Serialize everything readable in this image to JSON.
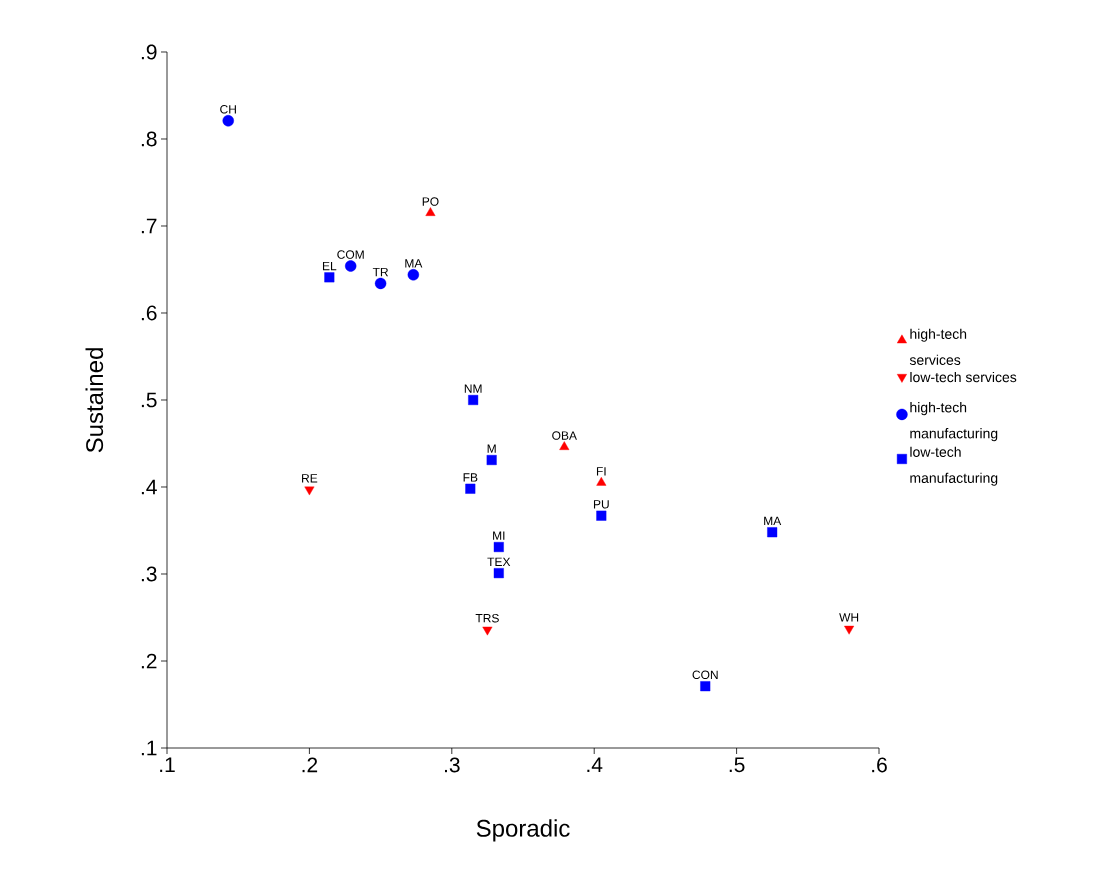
{
  "chart_data": {
    "type": "scatter",
    "xlabel": "Sporadic",
    "ylabel": "Sustained",
    "xlim": [
      0.1,
      0.6
    ],
    "ylim": [
      0.1,
      0.9
    ],
    "xticks": [
      {
        "value": 0.1,
        "label": ".1"
      },
      {
        "value": 0.2,
        "label": ".2"
      },
      {
        "value": 0.3,
        "label": ".3"
      },
      {
        "value": 0.4,
        "label": ".4"
      },
      {
        "value": 0.5,
        "label": ".5"
      },
      {
        "value": 0.6,
        "label": ".6"
      }
    ],
    "yticks": [
      {
        "value": 0.1,
        "label": ".1"
      },
      {
        "value": 0.2,
        "label": ".2"
      },
      {
        "value": 0.3,
        "label": ".3"
      },
      {
        "value": 0.4,
        "label": ".4"
      },
      {
        "value": 0.5,
        "label": ".5"
      },
      {
        "value": 0.6,
        "label": ".6"
      },
      {
        "value": 0.7,
        "label": ".7"
      },
      {
        "value": 0.8,
        "label": ".8"
      },
      {
        "value": 0.9,
        "label": ".9"
      }
    ],
    "legend": "right",
    "grid": false,
    "series": [
      {
        "name": "high-tech services",
        "color": "#ff0000",
        "marker": "triangle",
        "x": [
          0.285,
          0.379,
          0.405
        ],
        "values": [
          0.715,
          0.446,
          0.405
        ]
      },
      {
        "name": "low-tech services",
        "color": "#ff0000",
        "marker": "triangle-down",
        "x": [
          0.2,
          0.325,
          0.579
        ],
        "values": [
          0.397,
          0.236,
          0.237
        ]
      },
      {
        "name": "high-tech manufacturing",
        "color": "#0000ff",
        "marker": "circle",
        "x": [
          0.143,
          0.229,
          0.25,
          0.273
        ],
        "values": [
          0.821,
          0.654,
          0.634,
          0.644
        ]
      },
      {
        "name": "low-tech manufacturing",
        "color": "#0000ff",
        "marker": "square",
        "x": [
          0.214,
          0.315,
          0.328,
          0.313,
          0.333,
          0.333,
          0.405,
          0.525,
          0.478
        ],
        "values": [
          0.641,
          0.5,
          0.431,
          0.398,
          0.331,
          0.301,
          0.367,
          0.348,
          0.171
        ]
      }
    ],
    "annotations": [
      {
        "text": "PO",
        "x": 0.285,
        "y": 0.715
      },
      {
        "text": "OBA",
        "x": 0.379,
        "y": 0.446
      },
      {
        "text": "FI",
        "x": 0.405,
        "y": 0.405
      },
      {
        "text": "RE",
        "x": 0.2,
        "y": 0.397
      },
      {
        "text": "TRS",
        "x": 0.325,
        "y": 0.236
      },
      {
        "text": "WH",
        "x": 0.579,
        "y": 0.237
      },
      {
        "text": "CH",
        "x": 0.143,
        "y": 0.821
      },
      {
        "text": "COM",
        "x": 0.229,
        "y": 0.654
      },
      {
        "text": "TR",
        "x": 0.25,
        "y": 0.634
      },
      {
        "text": "MA",
        "x": 0.273,
        "y": 0.644
      },
      {
        "text": "EL",
        "x": 0.214,
        "y": 0.641
      },
      {
        "text": "NM",
        "x": 0.315,
        "y": 0.5
      },
      {
        "text": "M",
        "x": 0.328,
        "y": 0.431
      },
      {
        "text": "FB",
        "x": 0.313,
        "y": 0.398
      },
      {
        "text": "MI",
        "x": 0.333,
        "y": 0.331
      },
      {
        "text": "TEX",
        "x": 0.333,
        "y": 0.301
      },
      {
        "text": "PU",
        "x": 0.405,
        "y": 0.367
      },
      {
        "text": "MA",
        "x": 0.525,
        "y": 0.348
      },
      {
        "text": "CON",
        "x": 0.478,
        "y": 0.171
      }
    ]
  }
}
